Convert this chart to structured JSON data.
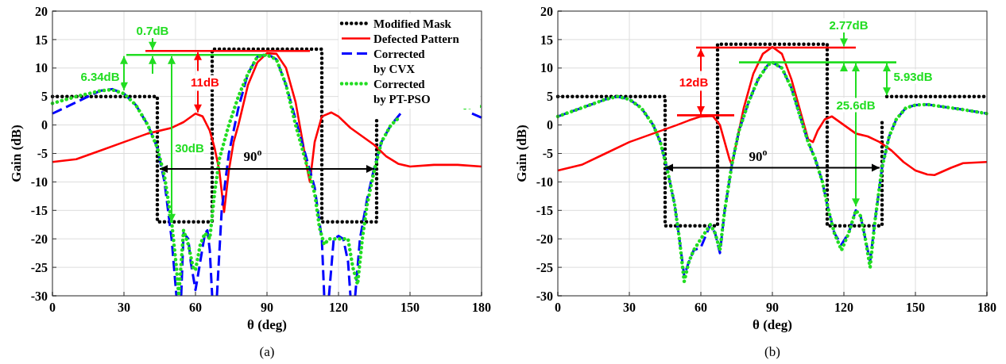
{
  "chart_data": [
    {
      "type": "line",
      "xlabel": "θ (deg)",
      "ylabel": "Gain (dB)",
      "xlim": [
        0,
        180
      ],
      "ylim": [
        -30,
        20
      ],
      "xticks": [
        0,
        30,
        60,
        90,
        120,
        150,
        180
      ],
      "yticks": [
        -30,
        -25,
        -20,
        -15,
        -10,
        -5,
        0,
        5,
        10,
        15,
        20
      ],
      "grid": true,
      "legend": "top right",
      "series": [
        {
          "name": "Modified Mask",
          "color": "#000000",
          "type": "line",
          "line_style": "dotted",
          "x": [
            0,
            44,
            44,
            67,
            67,
            113,
            113,
            136,
            136
          ],
          "values": [
            5,
            5,
            -17,
            -17,
            13.3,
            13.3,
            -17,
            -17,
            1
          ]
        },
        {
          "name": "Defected Pattern",
          "color": "#ff0000",
          "type": "line",
          "line_style": "solid",
          "x": [
            0,
            10,
            20,
            30,
            40,
            50,
            55,
            60,
            63,
            66,
            68,
            70,
            72,
            74,
            76,
            78,
            82,
            86,
            90,
            94,
            98,
            102,
            105,
            107,
            108,
            110,
            113,
            117,
            120,
            125,
            130,
            135,
            140,
            145,
            150,
            160,
            170,
            180
          ],
          "values": [
            -6.5,
            -6,
            -4.5,
            -3,
            -1.5,
            -0.5,
            0.5,
            2,
            1.5,
            -1,
            -4,
            -8,
            -15.3,
            -8,
            -3,
            0,
            7,
            11,
            12.6,
            12.5,
            10,
            4,
            -3,
            -8,
            -10,
            -3,
            1.5,
            2.2,
            1.5,
            -0.5,
            -2,
            -3.5,
            -5.5,
            -6.8,
            -7.3,
            -7,
            -7,
            -7.3
          ]
        },
        {
          "name": "Corrected\nby CVX",
          "color": "#0000ff",
          "type": "line",
          "line_style": "dashed",
          "x": [
            0,
            10,
            20,
            25,
            30,
            35,
            40,
            44,
            47,
            50,
            52,
            53,
            54,
            55,
            57,
            58,
            60,
            62,
            64,
            65,
            66,
            67,
            68,
            69,
            71,
            74,
            78,
            82,
            86,
            90,
            94,
            98,
            102,
            106,
            110,
            113,
            114,
            115,
            116,
            118,
            120,
            122,
            124,
            125,
            126,
            127,
            129,
            132,
            135,
            138,
            142,
            146,
            160,
            176,
            180
          ],
          "values": [
            2,
            4,
            6,
            6.3,
            5.5,
            3.5,
            0,
            -4,
            -10,
            -20,
            -30,
            null,
            -30,
            -19,
            -20,
            -24,
            -29,
            -24,
            -19,
            -18.5,
            -22,
            -30,
            null,
            -30,
            -15,
            -5,
            3,
            9,
            12,
            12.5,
            11.5,
            7,
            1,
            -5,
            -11,
            -20,
            -30,
            null,
            -30,
            -20,
            -19.5,
            -20,
            -24,
            -30,
            null,
            -30,
            -20,
            -13,
            -7.5,
            -3,
            0,
            2,
            null,
            2,
            1.3
          ]
        },
        {
          "name": "Corrected\nby PT-PSO",
          "color": "#22dd22",
          "line_style": "dotted",
          "x": [
            0,
            10,
            20,
            25,
            30,
            35,
            40,
            44,
            47,
            50,
            52,
            53,
            55,
            57,
            59,
            60,
            62,
            64,
            66,
            68,
            70,
            74,
            78,
            82,
            86,
            90,
            94,
            98,
            102,
            106,
            110,
            112,
            114,
            116,
            118,
            120,
            122,
            124,
            126,
            128,
            130,
            132,
            135,
            138,
            142,
            146,
            160,
            173,
            180
          ],
          "values": [
            3.8,
            5,
            6,
            6.2,
            5.5,
            3.5,
            0,
            -4,
            -9,
            -17,
            -25,
            -30,
            -18.5,
            -21,
            -25,
            -25.5,
            -21,
            -19,
            -20,
            -12,
            -6,
            0,
            5,
            9,
            12,
            12.3,
            11.5,
            7,
            0,
            -6,
            -12,
            -18,
            -21,
            -20,
            -20,
            -20,
            -20,
            -20,
            -25,
            -28,
            -20,
            -14,
            -8,
            -3,
            0,
            1.5,
            null,
            3,
            3.3
          ]
        },
        {
          "color": "#ff0000",
          "type": "line",
          "line_style": "solid",
          "x": [
            39,
            108
          ],
          "values": [
            13,
            13
          ]
        },
        {
          "color": "#22dd22",
          "type": "line",
          "line_style": "solid",
          "x": [
            31,
            90
          ],
          "values": [
            12.3,
            12.3
          ]
        }
      ],
      "annotations": [
        "0.7dB",
        "6.34dB",
        "11dB",
        "30dB",
        "90$^{o}$",
        "(a)"
      ]
    },
    {
      "type": "line",
      "xlabel": "θ (deg)",
      "ylabel": "Gain (dB)",
      "xlim": [
        0,
        180
      ],
      "ylim": [
        -30,
        20
      ],
      "xticks": [
        0,
        30,
        60,
        90,
        120,
        150,
        180
      ],
      "yticks": [
        -30,
        -25,
        -20,
        -15,
        -10,
        -5,
        0,
        5,
        10,
        15,
        20
      ],
      "grid": true,
      "series": [
        {
          "color": "#000000",
          "type": "line",
          "line_style": "dotted",
          "x": [
            0,
            45,
            45,
            67,
            67,
            113,
            113,
            136,
            136,
            137,
            138,
            180
          ],
          "values": [
            5,
            5,
            -17.7,
            -17.7,
            14.2,
            14.2,
            -17.7,
            -17.7,
            1.2,
            null,
            5,
            5
          ]
        },
        {
          "color": "#ff0000",
          "type": "line",
          "line_style": "solid",
          "x": [
            0,
            10,
            20,
            30,
            40,
            50,
            55,
            60,
            65,
            68,
            70,
            72,
            73,
            75,
            78,
            82,
            86,
            90,
            94,
            98,
            102,
            105,
            107,
            109,
            112,
            115,
            120,
            125,
            130,
            135,
            140,
            145,
            150,
            155,
            158,
            165,
            170,
            180
          ],
          "values": [
            -8,
            -7,
            -5,
            -3,
            -1.5,
            0,
            0.8,
            1.5,
            1.6,
            0,
            -3,
            -6,
            -7,
            -3,
            3,
            9,
            12.5,
            13.7,
            12.5,
            8,
            2,
            -2.5,
            -3,
            -1,
            1,
            1.5,
            0,
            -1.5,
            -2,
            -3,
            -4.5,
            -6.5,
            -8,
            -8.7,
            -8.8,
            -7.5,
            -6.7,
            -6.5
          ]
        },
        {
          "color": "#0000ff",
          "type": "line",
          "line_style": "dashed",
          "x": [
            0,
            10,
            20,
            25,
            30,
            35,
            40,
            43,
            46,
            49,
            51,
            53,
            55,
            57,
            60,
            64,
            66,
            68,
            70,
            73,
            76,
            80,
            84,
            88,
            90,
            94,
            98,
            102,
            105,
            108,
            111,
            113,
            116,
            119,
            122,
            125,
            127,
            129,
            131,
            133,
            136,
            139,
            142,
            146,
            150,
            155,
            160,
            170,
            180
          ],
          "values": [
            1.5,
            3,
            4.5,
            5,
            4.5,
            3,
            0,
            -3,
            -8,
            -14,
            -20,
            -26.5,
            -24,
            -22,
            -21.5,
            -17.5,
            -19,
            -22.5,
            -15,
            -7,
            -1,
            4,
            8,
            10.5,
            11,
            10,
            6.5,
            1,
            -3,
            -6,
            -10,
            -14,
            -19,
            -21,
            -19,
            -15,
            -16,
            -20,
            -24,
            -17,
            -7.5,
            -2,
            1,
            3,
            3.5,
            3.6,
            3.3,
            2.7,
            2
          ]
        },
        {
          "color": "#22dd22",
          "line_style": "dotted",
          "x": [
            0,
            10,
            20,
            25,
            30,
            35,
            40,
            43,
            46,
            49,
            51,
            53,
            55,
            57,
            60,
            64,
            66,
            68,
            70,
            73,
            76,
            80,
            84,
            88,
            90,
            94,
            98,
            102,
            105,
            108,
            111,
            113,
            116,
            119,
            122,
            125,
            127,
            129,
            131,
            133,
            136,
            139,
            142,
            146,
            150,
            155,
            160,
            170,
            180
          ],
          "values": [
            1.5,
            3,
            4.5,
            5,
            4.5,
            3,
            0,
            -3,
            -8,
            -14,
            -20,
            -27.5,
            -24,
            -22,
            -20,
            -17.5,
            -19,
            -22,
            -15,
            -7,
            -1,
            4,
            8,
            10.5,
            11,
            10,
            6.5,
            1,
            -3,
            -6,
            -10,
            -14,
            -19,
            -22,
            -19,
            -15,
            -16,
            -20,
            -25,
            -17,
            -7.5,
            -2,
            1,
            3,
            3.5,
            3.6,
            3.3,
            2.7,
            2
          ]
        },
        {
          "color": "#ff0000",
          "type": "line",
          "line_style": "solid",
          "x": [
            58,
            125
          ],
          "values": [
            13.6,
            13.6
          ]
        },
        {
          "color": "#ff0000",
          "type": "line",
          "line_style": "solid",
          "x": [
            50,
            74
          ],
          "values": [
            1.7,
            1.7
          ]
        },
        {
          "color": "#22dd22",
          "type": "line",
          "line_style": "solid",
          "x": [
            76,
            142
          ],
          "values": [
            11,
            11
          ]
        }
      ],
      "annotations": [
        "12dB",
        "2.77dB",
        "5.93dB",
        "25.6dB",
        "90$^{o}$",
        "(b)"
      ]
    }
  ]
}
